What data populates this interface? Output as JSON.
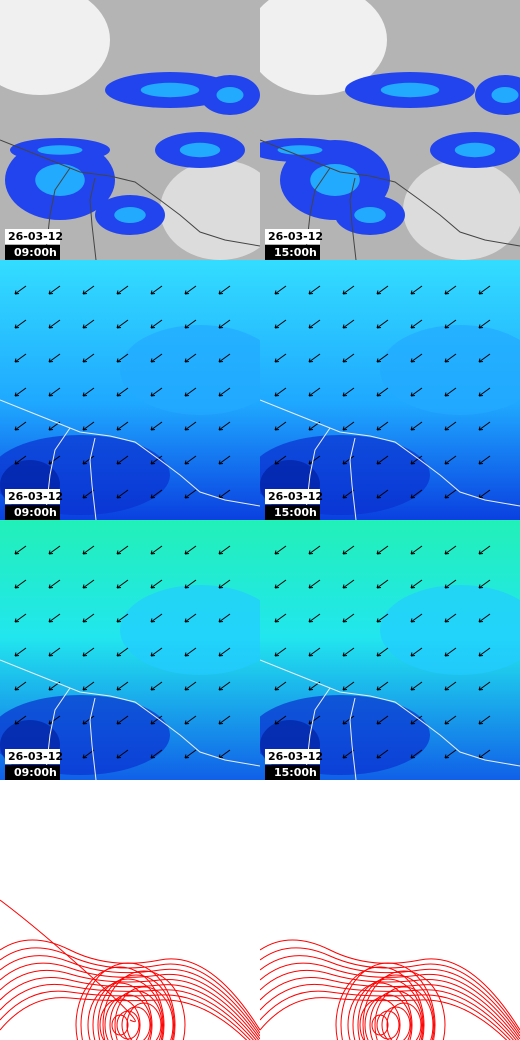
{
  "panels": [
    {
      "date": "26-03-12",
      "time": "09:00h"
    },
    {
      "date": "26-03-12",
      "time": "15:00h"
    },
    {
      "date": "26-03-12",
      "time": "09:00h"
    },
    {
      "date": "26-03-12",
      "time": "15:00h"
    },
    {
      "date": "26-03-12",
      "time": "09:00h"
    },
    {
      "date": "26-03-12",
      "time": "15:00h"
    }
  ]
}
